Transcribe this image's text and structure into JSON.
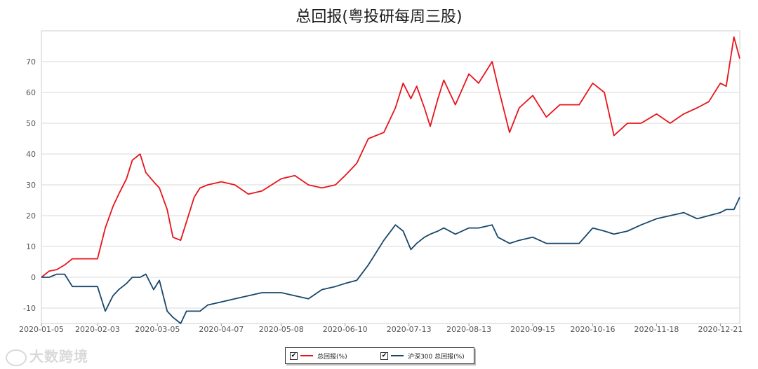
{
  "chart_data": {
    "type": "line",
    "title": "总回报(粤投研每周三股)",
    "xlabel": "",
    "ylabel": "",
    "ylim": [
      -15,
      80
    ],
    "y_ticks": [
      -10,
      0,
      10,
      20,
      30,
      40,
      50,
      60,
      70
    ],
    "x_tick_labels": [
      "2020-01-05",
      "2020-02-03",
      "2020-03-05",
      "2020-04-07",
      "2020-05-08",
      "2020-06-10",
      "2020-07-13",
      "2020-08-13",
      "2020-09-15",
      "2020-10-16",
      "2020-11-18",
      "2020-12-21"
    ],
    "x_range": [
      "2020-01-05",
      "2020-12-31"
    ],
    "grid": true,
    "legend_position": "bottom-center",
    "x": [
      "2020-01-05",
      "2020-01-09",
      "2020-01-13",
      "2020-01-17",
      "2020-01-21",
      "2020-02-03",
      "2020-02-07",
      "2020-02-11",
      "2020-02-14",
      "2020-02-18",
      "2020-02-21",
      "2020-02-25",
      "2020-02-28",
      "2020-03-03",
      "2020-03-06",
      "2020-03-10",
      "2020-03-13",
      "2020-03-17",
      "2020-03-20",
      "2020-03-24",
      "2020-03-27",
      "2020-03-31",
      "2020-04-07",
      "2020-04-14",
      "2020-04-21",
      "2020-04-28",
      "2020-05-08",
      "2020-05-15",
      "2020-05-22",
      "2020-05-29",
      "2020-06-05",
      "2020-06-10",
      "2020-06-16",
      "2020-06-22",
      "2020-06-30",
      "2020-07-06",
      "2020-07-10",
      "2020-07-14",
      "2020-07-17",
      "2020-07-21",
      "2020-07-24",
      "2020-07-28",
      "2020-07-31",
      "2020-08-06",
      "2020-08-13",
      "2020-08-18",
      "2020-08-25",
      "2020-08-28",
      "2020-09-03",
      "2020-09-08",
      "2020-09-15",
      "2020-09-22",
      "2020-09-29",
      "2020-10-09",
      "2020-10-16",
      "2020-10-22",
      "2020-10-27",
      "2020-11-03",
      "2020-11-10",
      "2020-11-18",
      "2020-11-25",
      "2020-12-02",
      "2020-12-09",
      "2020-12-15",
      "2020-12-21",
      "2020-12-24",
      "2020-12-28",
      "2020-12-31"
    ],
    "series": [
      {
        "name": "总回报(%)",
        "color": "#e8141b",
        "values": [
          0,
          2,
          2.5,
          4,
          6,
          6,
          16,
          23,
          27,
          32,
          38,
          40,
          34,
          31,
          29,
          22,
          13,
          12,
          18,
          26,
          29,
          30,
          31,
          30,
          27,
          28,
          32,
          33,
          30,
          29,
          30,
          33,
          37,
          45,
          47,
          55,
          63,
          58,
          62,
          55,
          49,
          58,
          64,
          56,
          66,
          63,
          70,
          62,
          47,
          55,
          59,
          52,
          56,
          56,
          63,
          60,
          46,
          50,
          50,
          53,
          50,
          53,
          55,
          57,
          63,
          62,
          78,
          71
        ]
      },
      {
        "name": "沪深300 总回报(%)",
        "color": "#17476b",
        "values": [
          0,
          0,
          1,
          1,
          -3,
          -3,
          -11,
          -6,
          -4,
          -2,
          0,
          0,
          1,
          -4,
          -1,
          -11,
          -13,
          -15,
          -11,
          -11,
          -11,
          -9,
          -8,
          -7,
          -6,
          -5,
          -5,
          -6,
          -7,
          -4,
          -3,
          -2,
          -1,
          4,
          12,
          17,
          15,
          9,
          11,
          13,
          14,
          15,
          16,
          14,
          16,
          16,
          17,
          13,
          11,
          12,
          13,
          11,
          11,
          11,
          16,
          15,
          14,
          15,
          17,
          19,
          20,
          21,
          19,
          20,
          21,
          22,
          22,
          26
        ]
      }
    ]
  },
  "legend": {
    "check_mark": "✔"
  },
  "watermark": {
    "text": "大数跨境"
  }
}
